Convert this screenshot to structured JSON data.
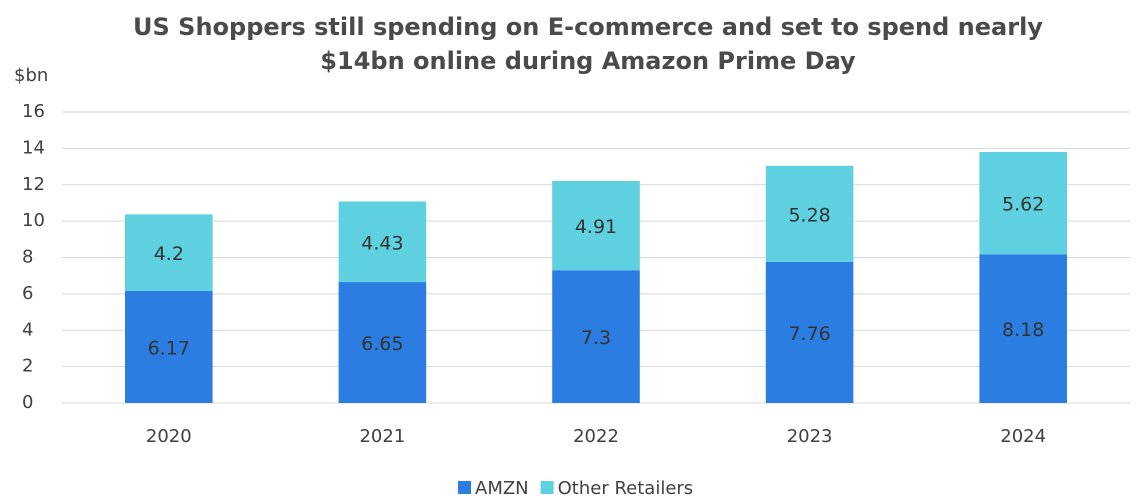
{
  "chart_data": {
    "type": "stacked_bar",
    "title": "US Shoppers still spending on E-commerce and set to spend nearly",
    "subtitle": "$14bn online during Amazon Prime Day",
    "y_label": "$bn",
    "categories": [
      "2020",
      "2021",
      "2022",
      "2023",
      "2024"
    ],
    "series": [
      {
        "name": "AMZN",
        "color": "#2b7de1",
        "values": [
          6.17,
          6.65,
          7.3,
          7.76,
          8.18
        ]
      },
      {
        "name": "Other Retailers",
        "color": "#5ed0e0",
        "values": [
          4.2,
          4.43,
          4.91,
          5.28,
          5.62
        ]
      }
    ],
    "ylim": [
      0,
      16
    ],
    "yticks": [
      0,
      2,
      4,
      6,
      8,
      10,
      12,
      14,
      16
    ],
    "grid": true,
    "legend": "bottom"
  }
}
